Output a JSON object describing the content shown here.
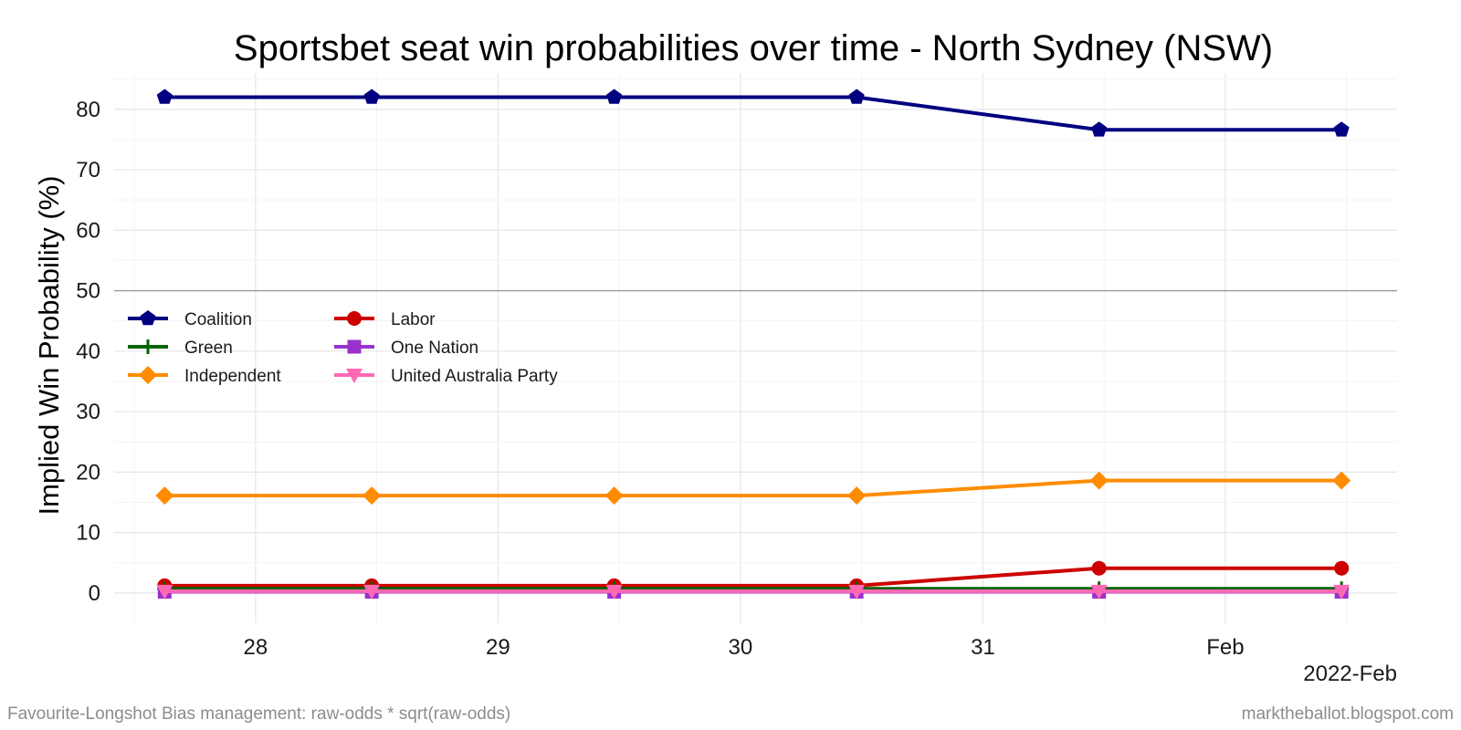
{
  "chart_data": {
    "type": "line",
    "title": "Sportsbet seat win probabilities over time - North Sydney (NSW)",
    "ylabel": "Implied Win Probability (%)",
    "xlabel": "",
    "x_axis_caption": "2022-Feb",
    "x_ticks": [
      {
        "label": "28",
        "x": "2022-01-28"
      },
      {
        "label": "29",
        "x": "2022-01-29"
      },
      {
        "label": "30",
        "x": "2022-01-30"
      },
      {
        "label": "31",
        "x": "2022-01-31"
      },
      {
        "label": "Feb",
        "x": "2022-02-01"
      }
    ],
    "xlim": [
      "2022-01-27 10:00",
      "2022-02-01 17:00"
    ],
    "ylim": [
      -5,
      86
    ],
    "y_ticks": [
      0,
      10,
      20,
      30,
      40,
      50,
      60,
      70,
      80
    ],
    "reference_line_y": 50,
    "grid": true,
    "legend_position": "middle-left",
    "x": [
      "2022-01-27 15:00",
      "2022-01-28 11:30",
      "2022-01-29 11:30",
      "2022-01-30 11:30",
      "2022-01-31 11:30",
      "2022-02-01 11:30"
    ],
    "series": [
      {
        "name": "Coalition",
        "color": "#000080",
        "marker": "pentagon",
        "values": [
          82.0,
          82.0,
          82.0,
          82.0,
          76.6,
          76.6
        ]
      },
      {
        "name": "Labor",
        "color": "#cc0000",
        "marker": "circle",
        "values": [
          1.2,
          1.2,
          1.2,
          1.2,
          4.1,
          4.1
        ]
      },
      {
        "name": "Green",
        "color": "#006400",
        "marker": "plus",
        "values": [
          0.7,
          0.7,
          0.7,
          0.7,
          0.7,
          0.7
        ]
      },
      {
        "name": "One Nation",
        "color": "#9932cc",
        "marker": "square",
        "values": [
          0.2,
          0.2,
          0.2,
          0.2,
          0.2,
          0.2
        ]
      },
      {
        "name": "Independent",
        "color": "#ff8c00",
        "marker": "diamond",
        "values": [
          16.1,
          16.1,
          16.1,
          16.1,
          18.6,
          18.6
        ]
      },
      {
        "name": "United Australia Party",
        "color": "#ff69b4",
        "marker": "triangle-down",
        "values": [
          0.3,
          0.3,
          0.3,
          0.3,
          0.3,
          0.3
        ]
      }
    ],
    "legend_order": [
      "Coalition",
      "Labor",
      "Green",
      "One Nation",
      "Independent",
      "United Australia Party"
    ]
  },
  "footer": {
    "left": "Favourite-Longshot Bias management: raw-odds * sqrt(raw-odds)",
    "right": "marktheballot.blogspot.com"
  }
}
